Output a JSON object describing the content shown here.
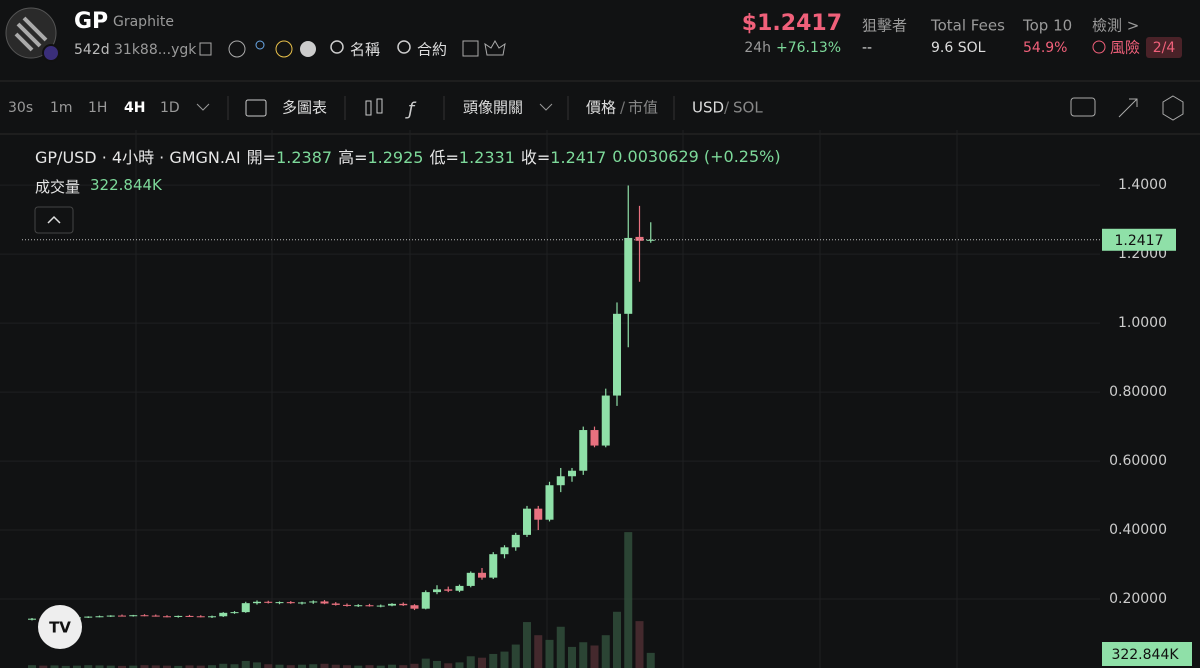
{
  "header": {
    "symbol": "GP",
    "name": "Graphite",
    "age": "542d",
    "address": "31k88...ygk",
    "search_name": "名稱",
    "search_contract": "合約",
    "price": "$1.2417",
    "change_period": "24h",
    "change": "+76.13%",
    "stats": [
      {
        "label": "狙擊者",
        "value": "--"
      },
      {
        "label": "Total Fees",
        "value": "9.6 SOL"
      },
      {
        "label": "Top 10",
        "value": "54.9%"
      }
    ],
    "check": "檢測 >",
    "risk": "風險",
    "risk_count": "2/4"
  },
  "toolbar": {
    "intervals": [
      "30s",
      "1m",
      "1H",
      "4H",
      "1D"
    ],
    "multi_chart": "多圖表",
    "avatar_toggle": "頭像開關",
    "price": "價格",
    "separator": "/",
    "market_cap": "市值",
    "usd": "USD",
    "sol": "SOL"
  },
  "legend": {
    "title": "GP/USD · 4小時 · GMGN.AI",
    "open": "開=",
    "high": "高=",
    "low": "低=",
    "close": "收=",
    "change": "0.0030629 (+0.25%)",
    "volume": "成交量"
  },
  "chart_data": {
    "type": "candlestick",
    "open": [
      0.14,
      0.143,
      0.141,
      0.145,
      0.146,
      0.147,
      0.149,
      0.15,
      0.152,
      0.151,
      0.153,
      0.152,
      0.15,
      0.149,
      0.151,
      0.15,
      0.148,
      0.15,
      0.16,
      0.162,
      0.188,
      0.192,
      0.189,
      0.191,
      0.188,
      0.19,
      0.193,
      0.187,
      0.183,
      0.18,
      0.182,
      0.179,
      0.181,
      0.186,
      0.182,
      0.172,
      0.22,
      0.228,
      0.224,
      0.238,
      0.276,
      0.262,
      0.33,
      0.35,
      0.386,
      0.462,
      0.43,
      0.53,
      0.556,
      0.572,
      0.69,
      0.645,
      0.79,
      1.027,
      1.25,
      1.2387
    ],
    "high": [
      0.145,
      0.146,
      0.146,
      0.148,
      0.149,
      0.15,
      0.152,
      0.153,
      0.155,
      0.154,
      0.156,
      0.155,
      0.153,
      0.152,
      0.154,
      0.153,
      0.152,
      0.162,
      0.165,
      0.192,
      0.196,
      0.195,
      0.193,
      0.194,
      0.192,
      0.196,
      0.197,
      0.191,
      0.187,
      0.185,
      0.186,
      0.184,
      0.188,
      0.19,
      0.185,
      0.225,
      0.24,
      0.236,
      0.242,
      0.28,
      0.29,
      0.336,
      0.356,
      0.392,
      0.47,
      0.47,
      0.54,
      0.58,
      0.58,
      0.7,
      0.7,
      0.81,
      1.06,
      1.399,
      1.34,
      1.2925
    ],
    "low": [
      0.138,
      0.14,
      0.139,
      0.143,
      0.144,
      0.145,
      0.147,
      0.148,
      0.15,
      0.149,
      0.15,
      0.149,
      0.147,
      0.146,
      0.148,
      0.147,
      0.145,
      0.148,
      0.157,
      0.16,
      0.184,
      0.187,
      0.185,
      0.186,
      0.184,
      0.186,
      0.185,
      0.181,
      0.178,
      0.177,
      0.178,
      0.176,
      0.179,
      0.18,
      0.168,
      0.17,
      0.214,
      0.22,
      0.22,
      0.234,
      0.256,
      0.258,
      0.318,
      0.34,
      0.38,
      0.4,
      0.425,
      0.51,
      0.54,
      0.56,
      0.64,
      0.64,
      0.76,
      0.93,
      1.12,
      1.2331
    ],
    "close": [
      0.143,
      0.141,
      0.145,
      0.146,
      0.147,
      0.149,
      0.15,
      0.152,
      0.151,
      0.153,
      0.152,
      0.15,
      0.149,
      0.151,
      0.15,
      0.148,
      0.15,
      0.16,
      0.162,
      0.188,
      0.192,
      0.189,
      0.191,
      0.188,
      0.19,
      0.193,
      0.187,
      0.183,
      0.18,
      0.182,
      0.179,
      0.181,
      0.186,
      0.182,
      0.172,
      0.22,
      0.228,
      0.224,
      0.238,
      0.276,
      0.262,
      0.33,
      0.35,
      0.386,
      0.462,
      0.43,
      0.53,
      0.556,
      0.572,
      0.69,
      0.645,
      0.79,
      1.027,
      1.247,
      1.2387,
      1.2417
    ],
    "volumes": [
      60000,
      50000,
      55000,
      45000,
      50000,
      60000,
      55000,
      50000,
      45000,
      50000,
      60000,
      55000,
      50000,
      45000,
      55000,
      50000,
      60000,
      90000,
      80000,
      150000,
      120000,
      80000,
      70000,
      60000,
      70000,
      80000,
      90000,
      70000,
      60000,
      50000,
      60000,
      50000,
      70000,
      60000,
      90000,
      200000,
      150000,
      100000,
      120000,
      250000,
      220000,
      300000,
      350000,
      500000,
      980000,
      700000,
      600000,
      880000,
      450000,
      550000,
      480000,
      700000,
      1200000,
      2900000,
      1000000,
      322844
    ],
    "volume_label": "322.844K",
    "vlim": [
      0,
      3500000
    ],
    "ylim": [
      0,
      1.56
    ],
    "yticks": [
      {
        "value": 0.2,
        "label": "0.20000"
      },
      {
        "value": 0.4,
        "label": "0.40000"
      },
      {
        "value": 0.6,
        "label": "0.60000"
      },
      {
        "value": 0.8,
        "label": "0.80000"
      },
      {
        "value": 1.0,
        "label": "1.0000"
      },
      {
        "value": 1.2,
        "label": "1.2000"
      },
      {
        "value": 1.4,
        "label": "1.4000"
      }
    ],
    "grid": true,
    "up_color": "#8fe0a8",
    "down_color": "#e8717f"
  }
}
